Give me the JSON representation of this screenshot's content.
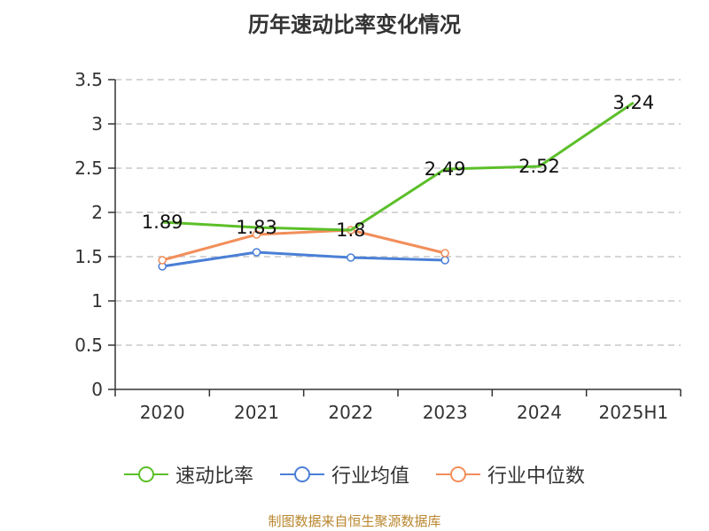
{
  "title": "历年速动比率变化情况",
  "source": "制图数据来自恒生聚源数据库",
  "chart_data": {
    "type": "line",
    "title": "历年速动比率变化情况",
    "categories": [
      "2020",
      "2021",
      "2022",
      "2023",
      "2024",
      "2025H1"
    ],
    "ylim": [
      0,
      3.5
    ],
    "yticks": [
      "0",
      "0.5",
      "1",
      "1.5",
      "2",
      "2.5",
      "3",
      "3.5"
    ],
    "grid": true,
    "legend_position": "bottom",
    "series": [
      {
        "name": "速动比率",
        "color": "#5cbf2a",
        "values": [
          1.89,
          1.83,
          1.8,
          2.49,
          2.52,
          3.24
        ],
        "labels": [
          "1.89",
          "1.83",
          "1.8",
          "2.49",
          "2.52",
          "3.24"
        ],
        "markers": false
      },
      {
        "name": "行业均值",
        "color": "#4a7fd6",
        "values": [
          1.39,
          1.55,
          1.49,
          1.46,
          null,
          null
        ],
        "markers": true
      },
      {
        "name": "行业中位数",
        "color": "#f28e5a",
        "values": [
          1.46,
          1.75,
          1.8,
          1.54,
          null,
          null
        ],
        "markers": true
      }
    ]
  }
}
